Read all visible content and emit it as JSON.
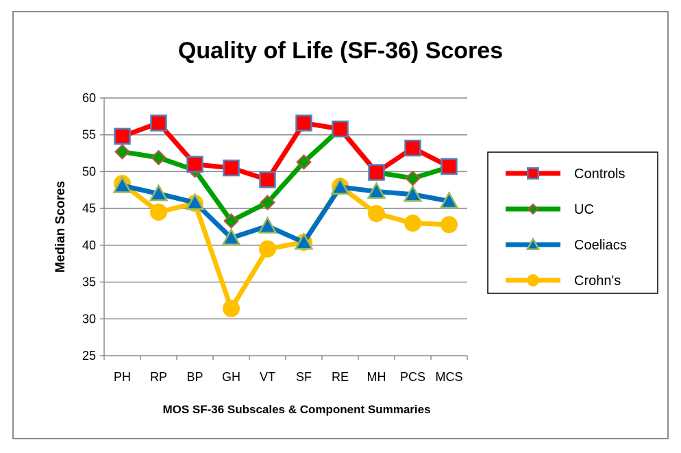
{
  "chart_data": {
    "type": "line",
    "title": "Quality of Life (SF-36) Scores",
    "xlabel": "MOS SF-36 Subscales & Component Summaries",
    "ylabel": "Median Scores",
    "categories": [
      "PH",
      "RP",
      "BP",
      "GH",
      "VT",
      "SF",
      "RE",
      "MH",
      "PCS",
      "MCS"
    ],
    "ylim": [
      25,
      60
    ],
    "yticks": [
      25,
      30,
      35,
      40,
      45,
      50,
      55,
      60
    ],
    "grid": true,
    "legend_position": "right",
    "series": [
      {
        "name": "Controls",
        "color": "#ff0000",
        "marker": "square",
        "marker_color": "#ff0000",
        "marker_edge": "#4f81bd",
        "values": [
          54.8,
          56.6,
          51.0,
          50.5,
          48.9,
          56.6,
          55.8,
          49.9,
          53.2,
          50.7
        ]
      },
      {
        "name": "UC",
        "color": "#00a000",
        "marker": "diamond",
        "marker_color": "#00a000",
        "marker_edge": "#c0504d",
        "values": [
          52.7,
          51.9,
          50.2,
          43.3,
          45.8,
          51.3,
          55.8,
          49.9,
          49.1,
          50.6
        ]
      },
      {
        "name": "Coeliacs",
        "color": "#0070c0",
        "marker": "triangle",
        "marker_color": "#0070c0",
        "marker_edge": "#9bbb59",
        "values": [
          48.1,
          47.0,
          45.8,
          41.0,
          42.6,
          40.4,
          47.9,
          47.3,
          46.9,
          46.0
        ]
      },
      {
        "name": "Crohn's",
        "color": "#ffc000",
        "marker": "circle",
        "marker_color": "#ffc000",
        "marker_edge": "#ffc000",
        "values": [
          48.4,
          44.5,
          45.7,
          31.4,
          39.5,
          40.4,
          48.0,
          44.3,
          43.0,
          42.8
        ]
      }
    ]
  }
}
